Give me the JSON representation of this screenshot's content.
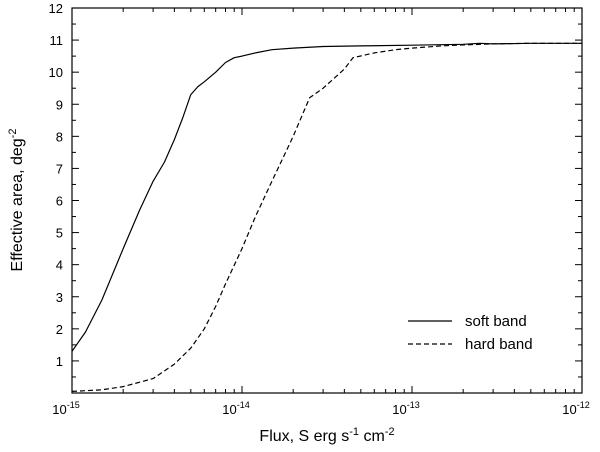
{
  "chart_data": {
    "type": "line",
    "xlabel": {
      "main": "Flux, S erg s",
      "sup1": "-1",
      "mid": " cm",
      "sup2": "-2"
    },
    "ylabel": {
      "main": "Effective area, deg",
      "sup": "-2"
    },
    "xscale": "log",
    "xlim": [
      1e-15,
      1e-12
    ],
    "ylim": [
      0,
      12
    ],
    "x_ticks": [
      {
        "value": 1e-15,
        "base": "10",
        "exp": "-15"
      },
      {
        "value": 1e-14,
        "base": "10",
        "exp": "-14"
      },
      {
        "value": 1e-13,
        "base": "10",
        "exp": "-13"
      },
      {
        "value": 1e-12,
        "base": "10",
        "exp": "-12"
      }
    ],
    "y_ticks": [
      {
        "value": 1,
        "label": "1"
      },
      {
        "value": 2,
        "label": "2"
      },
      {
        "value": 3,
        "label": "3"
      },
      {
        "value": 4,
        "label": "4"
      },
      {
        "value": 5,
        "label": "5"
      },
      {
        "value": 6,
        "label": "6"
      },
      {
        "value": 7,
        "label": "7"
      },
      {
        "value": 8,
        "label": "8"
      },
      {
        "value": 9,
        "label": "9"
      },
      {
        "value": 10,
        "label": "10"
      },
      {
        "value": 11,
        "label": "11"
      },
      {
        "value": 12,
        "label": "12"
      }
    ],
    "grid": false,
    "legend_position": "lower-right",
    "series": [
      {
        "name": "soft band",
        "style": "solid",
        "color": "#000000",
        "x": [
          1e-15,
          1.2e-15,
          1.5e-15,
          2e-15,
          2.5e-15,
          3e-15,
          3.5e-15,
          4e-15,
          4.5e-15,
          5e-15,
          5.5e-15,
          6e-15,
          7e-15,
          8e-15,
          9e-15,
          1e-14,
          1.2e-14,
          1.5e-14,
          2e-14,
          3e-14,
          5e-14,
          1e-13,
          2e-13,
          2.5e-13,
          3e-13,
          5e-13,
          1e-12
        ],
        "y": [
          1.3,
          1.9,
          2.9,
          4.5,
          5.7,
          6.6,
          7.2,
          7.9,
          8.6,
          9.3,
          9.55,
          9.7,
          10.0,
          10.3,
          10.45,
          10.5,
          10.6,
          10.7,
          10.75,
          10.8,
          10.82,
          10.84,
          10.87,
          10.9,
          10.88,
          10.9,
          10.9
        ]
      },
      {
        "name": "hard band",
        "style": "dashed",
        "color": "#000000",
        "x": [
          1e-15,
          1.5e-15,
          2e-15,
          3e-15,
          4e-15,
          5e-15,
          6e-15,
          7e-15,
          8e-15,
          1e-14,
          1.2e-14,
          1.5e-14,
          2e-14,
          2.5e-14,
          3e-14,
          4e-14,
          4.5e-14,
          6e-14,
          8e-14,
          1e-13,
          1.5e-13,
          2e-13,
          3e-13,
          5e-13,
          1e-12
        ],
        "y": [
          0.05,
          0.1,
          0.2,
          0.45,
          0.9,
          1.4,
          2.0,
          2.7,
          3.4,
          4.5,
          5.5,
          6.6,
          8.0,
          9.2,
          9.5,
          10.1,
          10.45,
          10.6,
          10.7,
          10.75,
          10.82,
          10.85,
          10.88,
          10.9,
          10.9
        ]
      }
    ]
  }
}
